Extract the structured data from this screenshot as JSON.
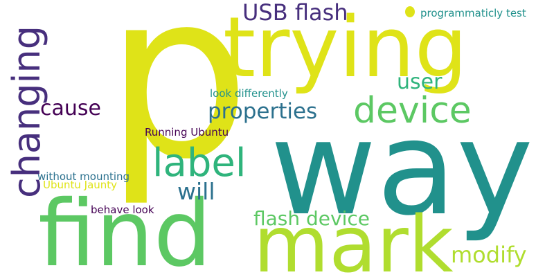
{
  "words": {
    "p": "p",
    "way": "way",
    "find": "find",
    "trying": "trying",
    "mark": "mark",
    "changing": "changing",
    "device": "device",
    "label": "label",
    "usb_flash": "USB flash",
    "properties": "properties",
    "user": "user",
    "cause": "cause",
    "flash_device": "flash device",
    "modify": "modify",
    "will": "will",
    "programmaticly_test": "programmaticly test",
    "look_differently": "look differently",
    "running_ubuntu": "Running Ubuntu",
    "without_mounting": "without mounting",
    "ubuntu_jaunty": "Ubuntu Jaunty",
    "behave_look": "behave look"
  },
  "palette": {
    "yellow": "#dfe318",
    "lime": "#b0dd2f",
    "green": "#5cc863",
    "emerald": "#2fb47c",
    "teal": "#21918c",
    "bluegray": "#2c718e",
    "blue": "#3b528b",
    "indigo": "#472f7d",
    "purple": "#440154"
  }
}
